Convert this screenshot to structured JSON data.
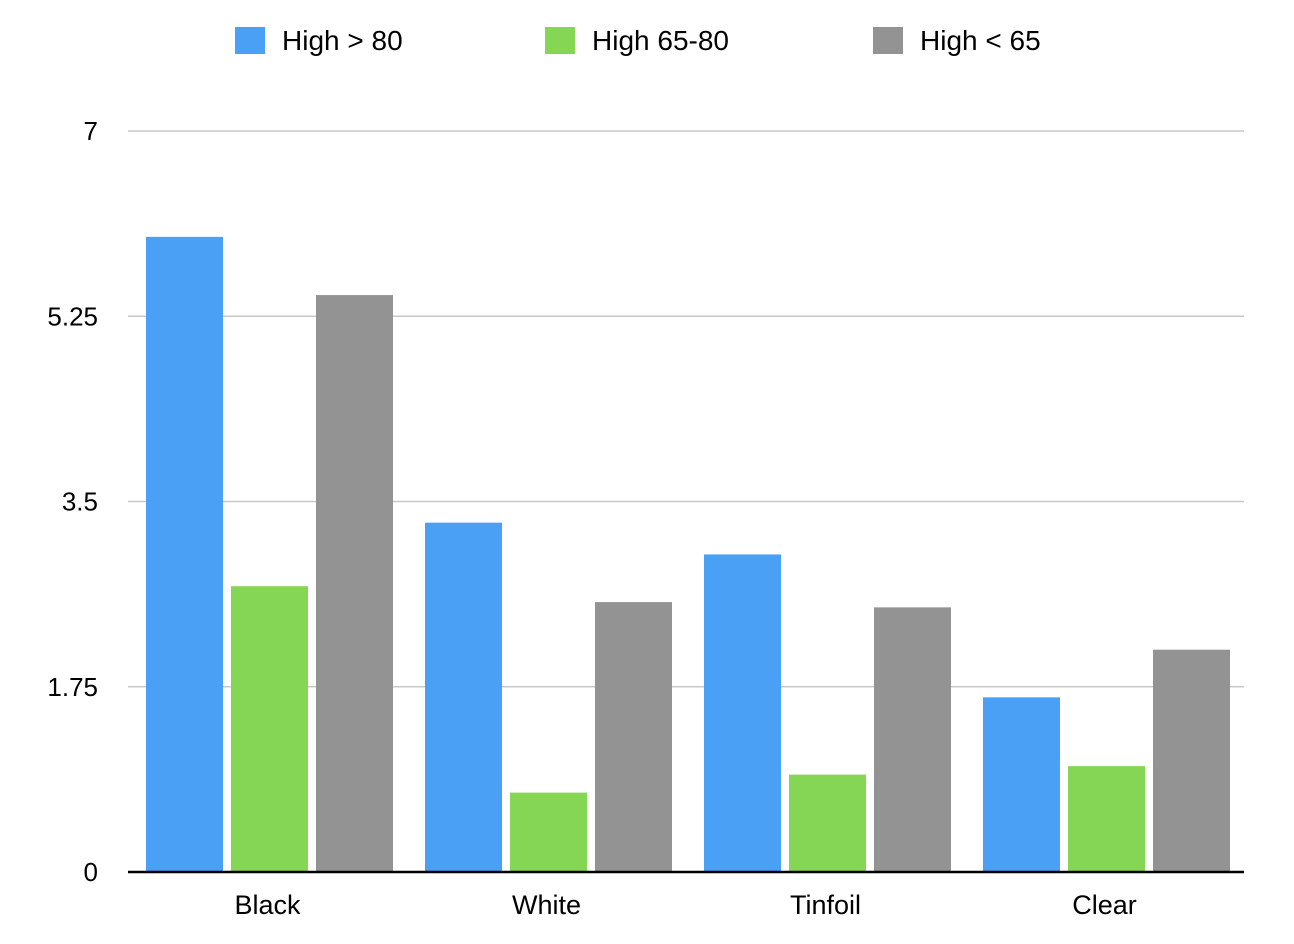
{
  "chart_data": {
    "type": "bar",
    "categories": [
      "Black",
      "White",
      "Tinfoil",
      "Clear"
    ],
    "series": [
      {
        "name": "High > 80",
        "color": "#4aa0f5",
        "values": [
          6.0,
          3.3,
          3.0,
          1.65
        ]
      },
      {
        "name": "High 65-80",
        "color": "#85d655",
        "values": [
          2.7,
          0.75,
          0.92,
          1.0
        ]
      },
      {
        "name": "High < 65",
        "color": "#939393",
        "values": [
          5.45,
          2.55,
          2.5,
          2.1
        ]
      }
    ],
    "yticks": [
      "0",
      "1.75",
      "3.5",
      "5.25",
      "7"
    ],
    "ylim": [
      0,
      7
    ],
    "grid": true,
    "legend_position": "top"
  }
}
